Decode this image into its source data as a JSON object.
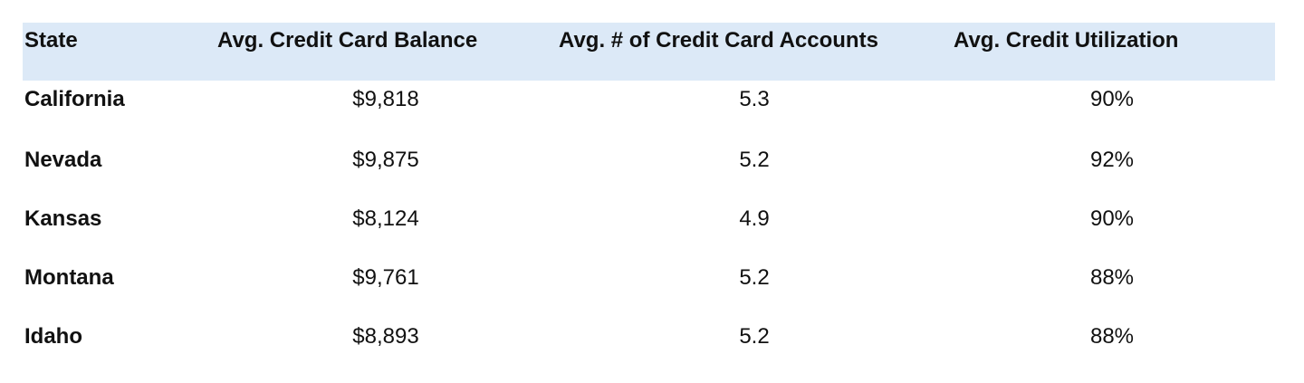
{
  "table": {
    "header": [
      "State",
      "Avg. Credit Card Balance",
      "Avg. # of Credit Card Accounts",
      "Avg. Credit Utilization"
    ],
    "rows": [
      [
        "California",
        "$9,818",
        "5.3",
        "90%"
      ],
      [
        "Nevada",
        "$9,875",
        "5.2",
        "92%"
      ],
      [
        "Kansas",
        "$8,124",
        "4.9",
        "90%"
      ],
      [
        "Montana",
        "$9,761",
        "5.2",
        "88%"
      ],
      [
        "Idaho",
        "$8,893",
        "5.2",
        "88%"
      ]
    ]
  }
}
